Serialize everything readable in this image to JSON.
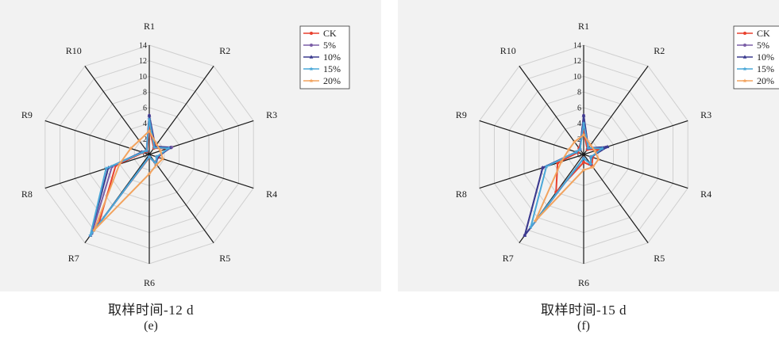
{
  "chart_data": [
    {
      "type": "radar",
      "panel_label": "(e)",
      "caption": "取样时间-12 d",
      "axes": [
        "R1",
        "R2",
        "R3",
        "R4",
        "R5",
        "R6",
        "R7",
        "R8",
        "R9",
        "R10"
      ],
      "rlim": [
        0,
        14
      ],
      "rticks": [
        "0",
        "2",
        "4",
        "6",
        "8",
        "10",
        "12",
        "14"
      ],
      "grid": true,
      "legend_position": "top-right",
      "series": [
        {
          "name": "CK",
          "color": "#e8412e",
          "marker": "circle",
          "values": [
            3.5,
            1.0,
            2.5,
            1.2,
            1.2,
            0.4,
            11.0,
            4.5,
            0.8,
            0.5
          ]
        },
        {
          "name": "5%",
          "color": "#7b5ea7",
          "marker": "circle",
          "values": [
            5.0,
            1.2,
            3.0,
            1.0,
            1.5,
            0.3,
            12.5,
            5.0,
            1.0,
            0.6
          ]
        },
        {
          "name": "10%",
          "color": "#3b3b8f",
          "marker": "triangle",
          "values": [
            5.0,
            1.3,
            2.8,
            1.1,
            1.5,
            0.3,
            12.8,
            5.5,
            1.0,
            0.6
          ]
        },
        {
          "name": "15%",
          "color": "#4aa8d8",
          "marker": "star",
          "values": [
            4.5,
            1.1,
            2.6,
            1.0,
            1.4,
            0.3,
            12.8,
            5.8,
            0.9,
            0.6
          ]
        },
        {
          "name": "20%",
          "color": "#f2a35e",
          "marker": "star",
          "values": [
            3.0,
            1.6,
            1.5,
            1.8,
            1.6,
            2.5,
            12.0,
            4.0,
            2.5,
            2.2
          ]
        }
      ]
    },
    {
      "type": "radar",
      "panel_label": "(f)",
      "caption": "取样时间-15 d",
      "axes": [
        "R1",
        "R2",
        "R3",
        "R4",
        "R5",
        "R6",
        "R7",
        "R8",
        "R9",
        "R10"
      ],
      "rlim": [
        0,
        14
      ],
      "rticks": [
        "0",
        "2",
        "4",
        "6",
        "8",
        "10",
        "12",
        "14"
      ],
      "grid": true,
      "legend_position": "top-right",
      "series": [
        {
          "name": "CK",
          "color": "#e8412e",
          "marker": "circle",
          "values": [
            3.0,
            0.8,
            2.0,
            1.2,
            1.8,
            1.0,
            6.0,
            3.5,
            0.8,
            1.0
          ]
        },
        {
          "name": "5%",
          "color": "#7b5ea7",
          "marker": "circle",
          "values": [
            5.0,
            1.0,
            3.0,
            1.0,
            1.5,
            0.5,
            12.8,
            5.5,
            1.0,
            0.8
          ]
        },
        {
          "name": "10%",
          "color": "#3b3b8f",
          "marker": "triangle",
          "values": [
            5.0,
            1.0,
            3.2,
            1.0,
            1.5,
            0.5,
            12.8,
            5.5,
            1.0,
            0.8
          ]
        },
        {
          "name": "15%",
          "color": "#4aa8d8",
          "marker": "star",
          "values": [
            4.0,
            1.0,
            2.5,
            1.0,
            1.5,
            0.5,
            11.5,
            5.0,
            1.0,
            0.8
          ]
        },
        {
          "name": "20%",
          "color": "#f2a35e",
          "marker": "star",
          "values": [
            2.5,
            1.5,
            1.5,
            2.0,
            2.0,
            2.0,
            10.5,
            3.0,
            2.0,
            2.0
          ]
        }
      ]
    }
  ]
}
